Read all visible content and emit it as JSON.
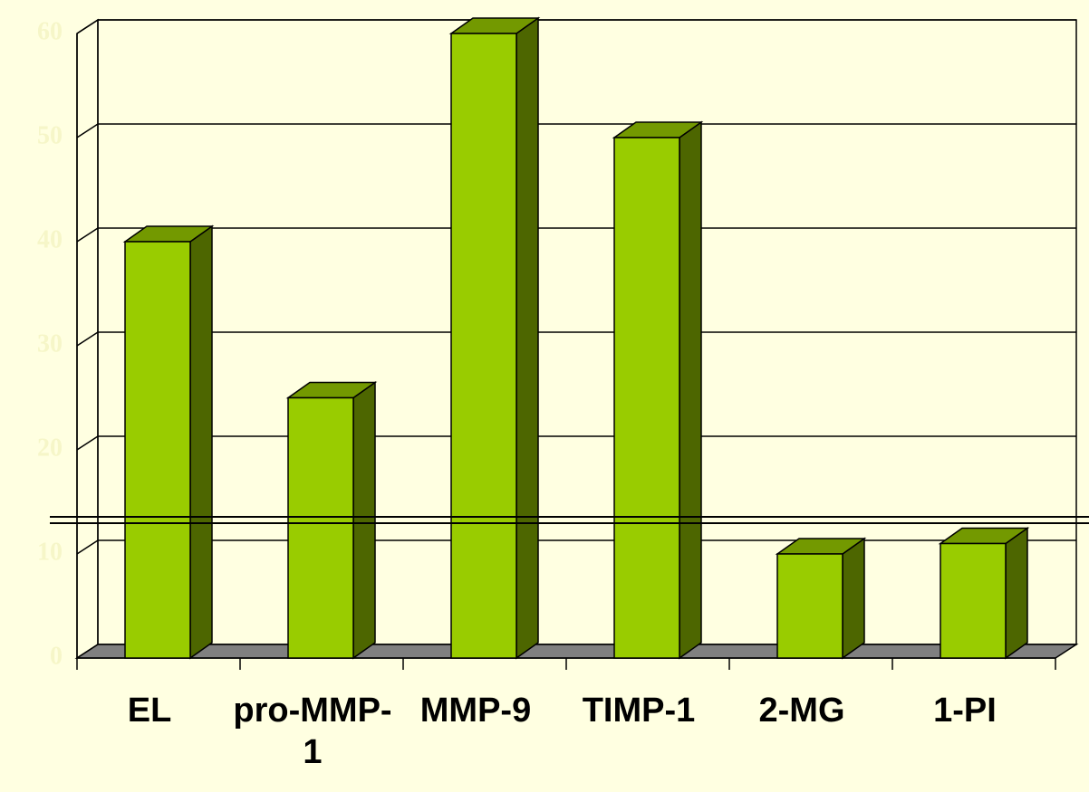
{
  "chart_data": {
    "type": "bar3d",
    "categories": [
      "EL",
      "pro-MMP-1",
      "MMP-9",
      "TIMP-1",
      "2-MG",
      "1-PI"
    ],
    "values": [
      40,
      25,
      60,
      50,
      10,
      11
    ],
    "color": "#99cc00",
    "ylim": [
      0,
      60
    ],
    "yticks": [
      0,
      10,
      20,
      30,
      40,
      50,
      60
    ],
    "grid": true
  }
}
